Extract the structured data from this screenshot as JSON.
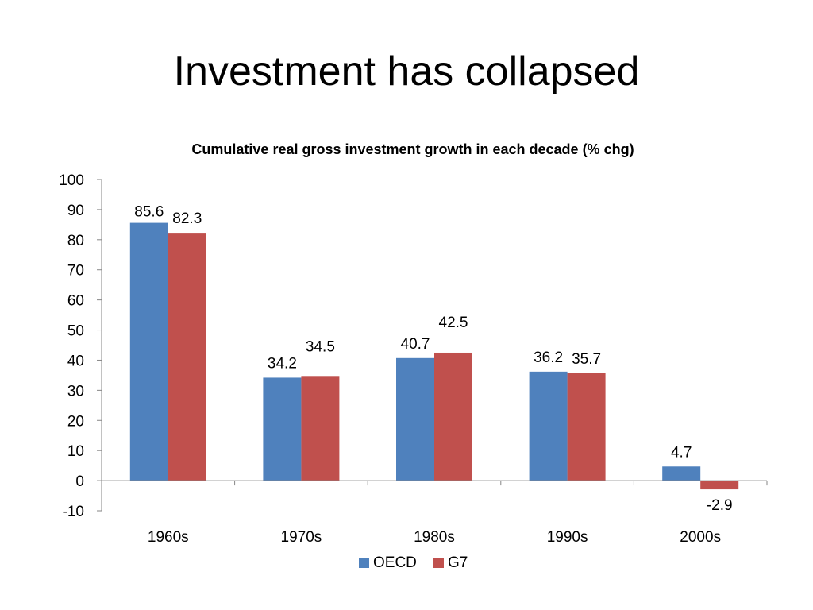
{
  "page": {
    "title": "Investment has collapsed"
  },
  "chart_data": {
    "type": "bar",
    "title": "Cumulative real gross investment growth in each decade (% chg)",
    "xlabel": "",
    "ylabel": "",
    "categories": [
      "1960s",
      "1970s",
      "1980s",
      "1990s",
      "2000s"
    ],
    "series": [
      {
        "name": "OECD",
        "color": "#4F81BD",
        "values": [
          85.6,
          34.2,
          40.7,
          36.2,
          4.7
        ]
      },
      {
        "name": "G7",
        "color": "#C0504D",
        "values": [
          82.3,
          34.5,
          42.5,
          35.7,
          -2.9
        ]
      }
    ],
    "ylim": [
      -10,
      100
    ],
    "yticks": [
      -10,
      0,
      10,
      20,
      30,
      40,
      50,
      60,
      70,
      80,
      90,
      100
    ],
    "grid": false,
    "legend_position": "bottom",
    "data_labels": true
  }
}
